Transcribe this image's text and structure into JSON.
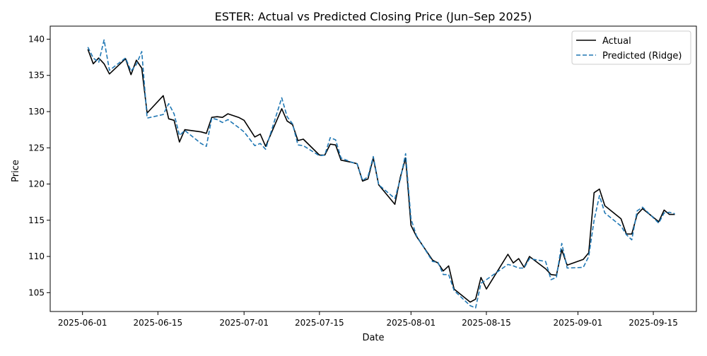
{
  "chart_data": {
    "type": "line",
    "title": "ESTER: Actual vs Predicted Closing Price (Jun–Sep 2025)",
    "xlabel": "Date",
    "ylabel": "Price",
    "xlim": [
      "2025-05-26",
      "2025-09-23"
    ],
    "ylim": [
      102.4,
      141.8
    ],
    "x_ticks": [
      "2025-06-01",
      "2025-06-15",
      "2025-07-01",
      "2025-07-15",
      "2025-08-01",
      "2025-08-15",
      "2025-09-01",
      "2025-09-15"
    ],
    "y_ticks": [
      105,
      110,
      115,
      120,
      125,
      130,
      135,
      140
    ],
    "legend_position": "top-right",
    "grid": false,
    "series": [
      {
        "name": "Actual",
        "color": "#000000",
        "style": "solid",
        "points": [
          [
            "2025-06-02",
            138.6
          ],
          [
            "2025-06-03",
            136.6
          ],
          [
            "2025-06-04",
            137.4
          ],
          [
            "2025-06-05",
            136.6
          ],
          [
            "2025-06-06",
            135.2
          ],
          [
            "2025-06-09",
            137.3
          ],
          [
            "2025-06-10",
            135.1
          ],
          [
            "2025-06-11",
            137.1
          ],
          [
            "2025-06-12",
            136.0
          ],
          [
            "2025-06-13",
            129.8
          ],
          [
            "2025-06-16",
            132.2
          ],
          [
            "2025-06-17",
            129.0
          ],
          [
            "2025-06-18",
            128.8
          ],
          [
            "2025-06-19",
            125.8
          ],
          [
            "2025-06-20",
            127.5
          ],
          [
            "2025-06-23",
            127.2
          ],
          [
            "2025-06-24",
            127.0
          ],
          [
            "2025-06-25",
            129.2
          ],
          [
            "2025-06-26",
            129.3
          ],
          [
            "2025-06-27",
            129.2
          ],
          [
            "2025-06-28",
            129.7
          ],
          [
            "2025-06-30",
            129.2
          ],
          [
            "2025-07-01",
            128.8
          ],
          [
            "2025-07-03",
            126.5
          ],
          [
            "2025-07-04",
            126.9
          ],
          [
            "2025-07-05",
            125.2
          ],
          [
            "2025-07-08",
            130.4
          ],
          [
            "2025-07-09",
            128.7
          ],
          [
            "2025-07-10",
            128.2
          ],
          [
            "2025-07-11",
            126.0
          ],
          [
            "2025-07-12",
            126.2
          ],
          [
            "2025-07-15",
            124.0
          ],
          [
            "2025-07-16",
            124.0
          ],
          [
            "2025-07-17",
            125.5
          ],
          [
            "2025-07-18",
            125.4
          ],
          [
            "2025-07-19",
            123.3
          ],
          [
            "2025-07-21",
            123.0
          ],
          [
            "2025-07-22",
            122.8
          ],
          [
            "2025-07-23",
            120.4
          ],
          [
            "2025-07-24",
            120.7
          ],
          [
            "2025-07-25",
            123.6
          ],
          [
            "2025-07-26",
            119.9
          ],
          [
            "2025-07-29",
            117.2
          ],
          [
            "2025-07-30",
            120.9
          ],
          [
            "2025-07-31",
            123.6
          ],
          [
            "2025-08-01",
            114.3
          ],
          [
            "2025-08-02",
            112.8
          ],
          [
            "2025-08-05",
            109.5
          ],
          [
            "2025-08-06",
            109.1
          ],
          [
            "2025-08-07",
            108.0
          ],
          [
            "2025-08-08",
            108.7
          ],
          [
            "2025-08-09",
            105.5
          ],
          [
            "2025-08-12",
            103.7
          ],
          [
            "2025-08-13",
            104.1
          ],
          [
            "2025-08-14",
            107.1
          ],
          [
            "2025-08-15",
            105.5
          ],
          [
            "2025-08-19",
            110.3
          ],
          [
            "2025-08-20",
            109.1
          ],
          [
            "2025-08-21",
            109.7
          ],
          [
            "2025-08-22",
            108.5
          ],
          [
            "2025-08-23",
            110.0
          ],
          [
            "2025-08-26",
            108.3
          ],
          [
            "2025-08-27",
            107.5
          ],
          [
            "2025-08-28",
            107.4
          ],
          [
            "2025-08-29",
            110.9
          ],
          [
            "2025-08-30",
            108.8
          ],
          [
            "2025-09-02",
            109.6
          ],
          [
            "2025-09-03",
            110.5
          ],
          [
            "2025-09-04",
            118.8
          ],
          [
            "2025-09-05",
            119.3
          ],
          [
            "2025-09-06",
            117.0
          ],
          [
            "2025-09-09",
            115.2
          ],
          [
            "2025-09-10",
            113.1
          ],
          [
            "2025-09-11",
            113.1
          ],
          [
            "2025-09-12",
            115.8
          ],
          [
            "2025-09-13",
            116.6
          ],
          [
            "2025-09-16",
            114.8
          ],
          [
            "2025-09-17",
            116.4
          ],
          [
            "2025-09-18",
            115.8
          ],
          [
            "2025-09-19",
            115.8
          ]
        ]
      },
      {
        "name": "Predicted (Ridge)",
        "color": "#1f77b4",
        "style": "dashed",
        "points": [
          [
            "2025-06-02",
            138.9
          ],
          [
            "2025-06-03",
            137.4
          ],
          [
            "2025-06-04",
            136.8
          ],
          [
            "2025-06-05",
            139.9
          ],
          [
            "2025-06-06",
            135.7
          ],
          [
            "2025-06-09",
            137.4
          ],
          [
            "2025-06-10",
            135.6
          ],
          [
            "2025-06-11",
            136.5
          ],
          [
            "2025-06-12",
            138.3
          ],
          [
            "2025-06-13",
            129.1
          ],
          [
            "2025-06-16",
            129.6
          ],
          [
            "2025-06-17",
            131.1
          ],
          [
            "2025-06-18",
            129.7
          ],
          [
            "2025-06-19",
            126.7
          ],
          [
            "2025-06-20",
            127.4
          ],
          [
            "2025-06-23",
            125.6
          ],
          [
            "2025-06-24",
            125.2
          ],
          [
            "2025-06-25",
            129.1
          ],
          [
            "2025-06-26",
            128.9
          ],
          [
            "2025-06-27",
            128.5
          ],
          [
            "2025-06-28",
            128.9
          ],
          [
            "2025-06-30",
            127.8
          ],
          [
            "2025-07-01",
            127.2
          ],
          [
            "2025-07-03",
            125.3
          ],
          [
            "2025-07-04",
            125.6
          ],
          [
            "2025-07-05",
            124.8
          ],
          [
            "2025-07-08",
            131.9
          ],
          [
            "2025-07-09",
            129.3
          ],
          [
            "2025-07-10",
            128.3
          ],
          [
            "2025-07-11",
            125.4
          ],
          [
            "2025-07-12",
            125.3
          ],
          [
            "2025-07-15",
            123.9
          ],
          [
            "2025-07-16",
            124.0
          ],
          [
            "2025-07-17",
            126.4
          ],
          [
            "2025-07-18",
            126.1
          ],
          [
            "2025-07-19",
            123.6
          ],
          [
            "2025-07-21",
            123.0
          ],
          [
            "2025-07-22",
            122.8
          ],
          [
            "2025-07-23",
            120.5
          ],
          [
            "2025-07-24",
            121.0
          ],
          [
            "2025-07-25",
            123.8
          ],
          [
            "2025-07-26",
            119.9
          ],
          [
            "2025-07-29",
            118.0
          ],
          [
            "2025-07-30",
            120.6
          ],
          [
            "2025-07-31",
            124.2
          ],
          [
            "2025-08-01",
            115.2
          ],
          [
            "2025-08-02",
            112.9
          ],
          [
            "2025-08-05",
            109.3
          ],
          [
            "2025-08-06",
            109.2
          ],
          [
            "2025-08-07",
            107.5
          ],
          [
            "2025-08-08",
            107.5
          ],
          [
            "2025-08-09",
            105.3
          ],
          [
            "2025-08-12",
            103.2
          ],
          [
            "2025-08-13",
            102.9
          ],
          [
            "2025-08-14",
            106.3
          ],
          [
            "2025-08-15",
            106.8
          ],
          [
            "2025-08-19",
            108.9
          ],
          [
            "2025-08-20",
            108.7
          ],
          [
            "2025-08-21",
            108.4
          ],
          [
            "2025-08-22",
            108.4
          ],
          [
            "2025-08-23",
            109.7
          ],
          [
            "2025-08-26",
            109.3
          ],
          [
            "2025-08-27",
            106.8
          ],
          [
            "2025-08-28",
            107.1
          ],
          [
            "2025-08-29",
            111.8
          ],
          [
            "2025-08-30",
            108.4
          ],
          [
            "2025-09-02",
            108.5
          ],
          [
            "2025-09-03",
            110.0
          ],
          [
            "2025-09-04",
            115.0
          ],
          [
            "2025-09-05",
            118.4
          ],
          [
            "2025-09-06",
            116.0
          ],
          [
            "2025-09-09",
            114.2
          ],
          [
            "2025-09-10",
            113.0
          ],
          [
            "2025-09-11",
            112.3
          ],
          [
            "2025-09-12",
            116.3
          ],
          [
            "2025-09-13",
            116.8
          ],
          [
            "2025-09-16",
            114.6
          ],
          [
            "2025-09-17",
            116.0
          ],
          [
            "2025-09-18",
            116.1
          ],
          [
            "2025-09-19",
            115.9
          ]
        ]
      }
    ]
  }
}
